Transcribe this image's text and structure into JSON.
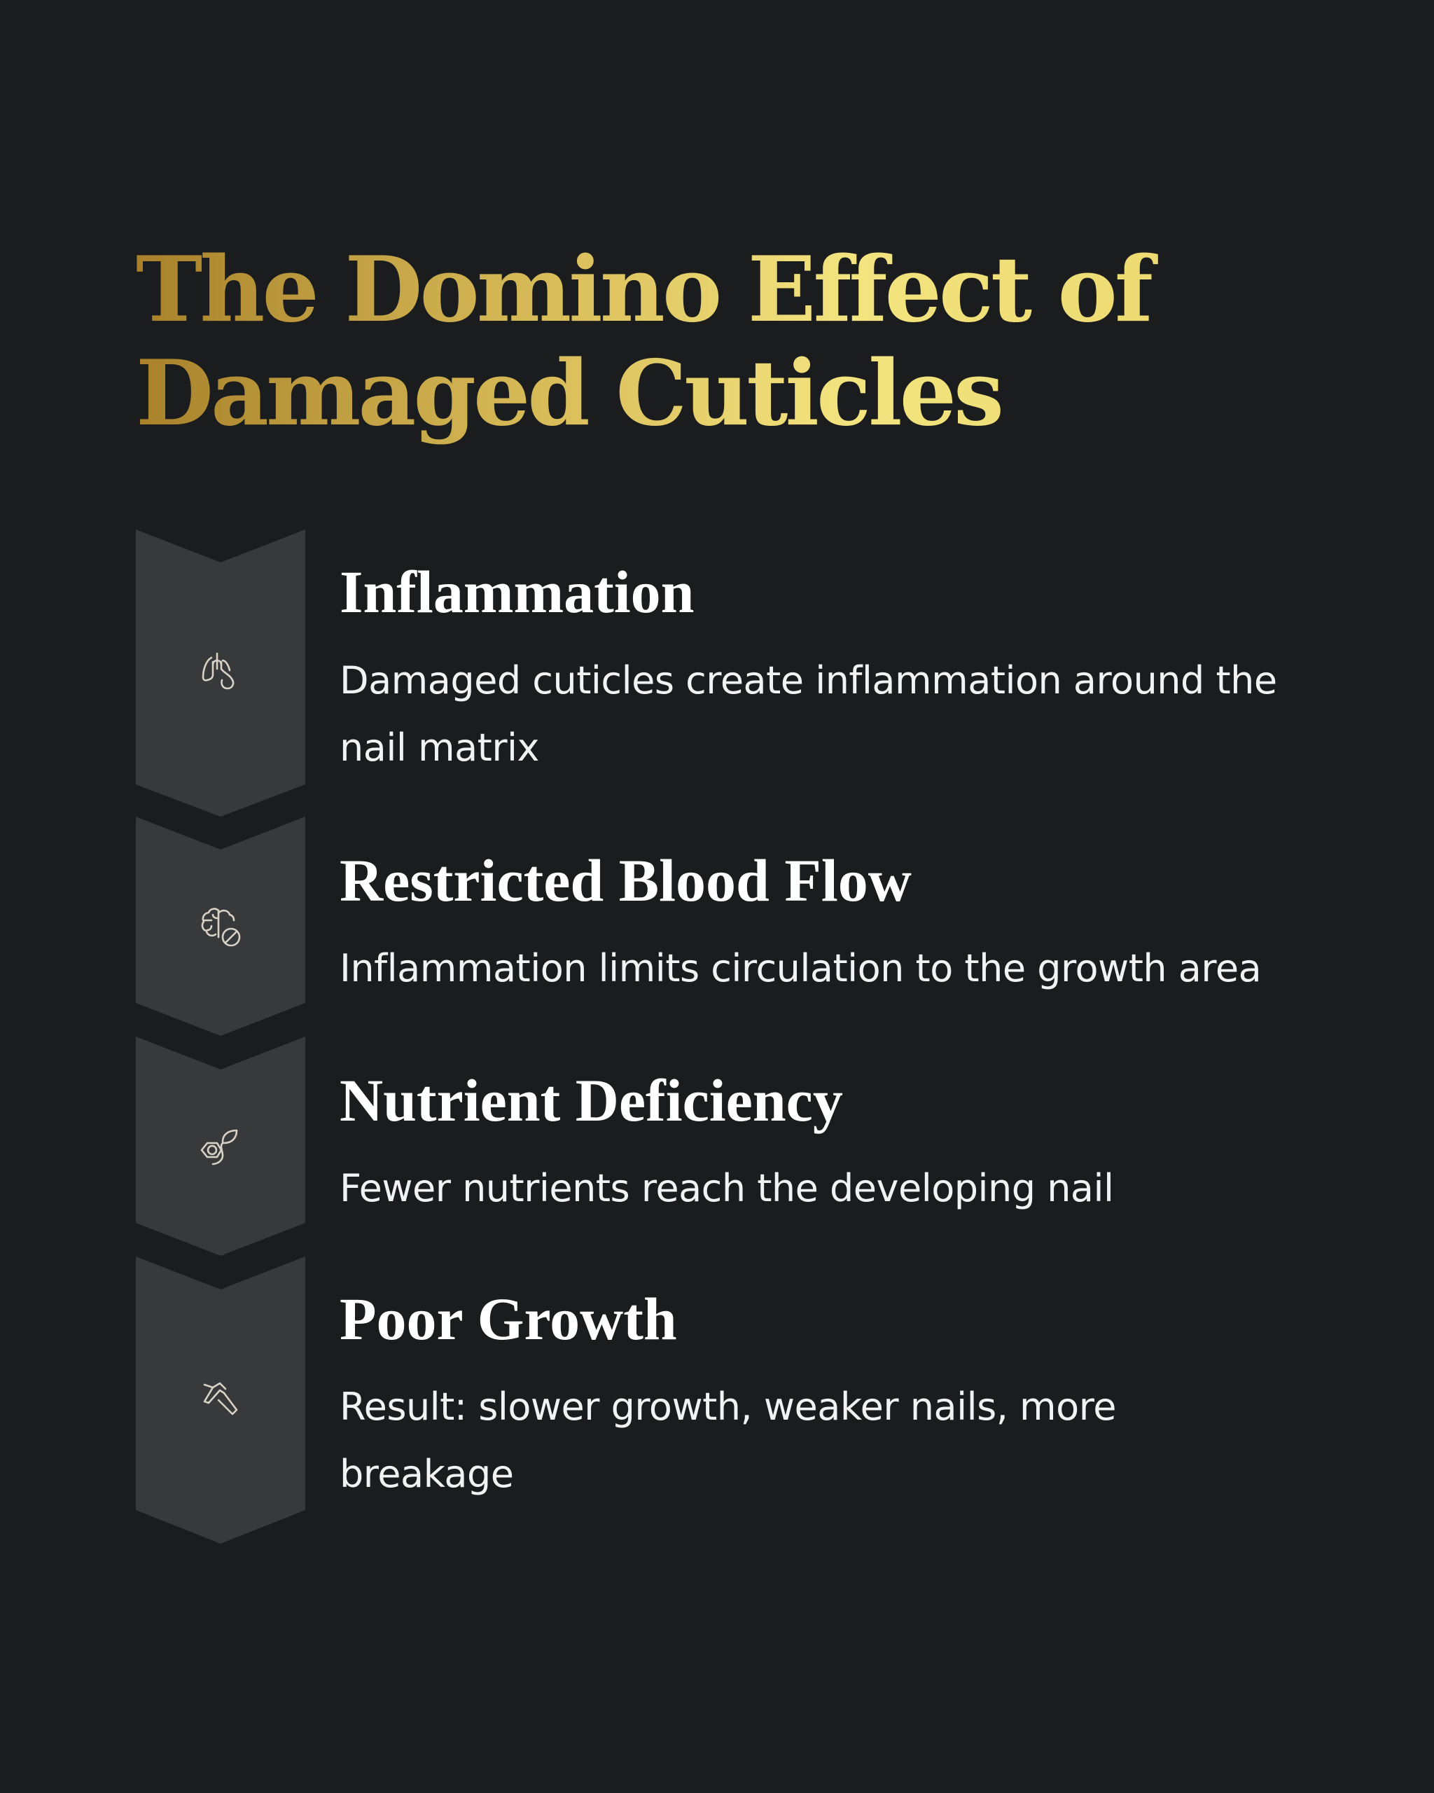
{
  "title": "The Domino Effect of Damaged Cuticles",
  "colors": {
    "background": "#1b1c1e",
    "panel": "#38393b",
    "title_gradient": [
      "#a8812a",
      "#f3e47f"
    ],
    "icon": "#d8d3c6"
  },
  "steps": [
    {
      "icon": "lungs-icon",
      "heading": "Inflammation",
      "text": "Damaged cuticles create inflammation around the nail matrix"
    },
    {
      "icon": "brain-icon",
      "heading": "Restricted Blood Flow",
      "text": "Inflammation limits circulation to the growth area"
    },
    {
      "icon": "molecule-leaf-icon",
      "heading": "Nutrient Deficiency",
      "text": "Fewer nutrients reach the developing nail"
    },
    {
      "icon": "hammer-icon",
      "heading": "Poor Growth",
      "text": "Result: slower growth, weaker nails, more breakage"
    }
  ]
}
